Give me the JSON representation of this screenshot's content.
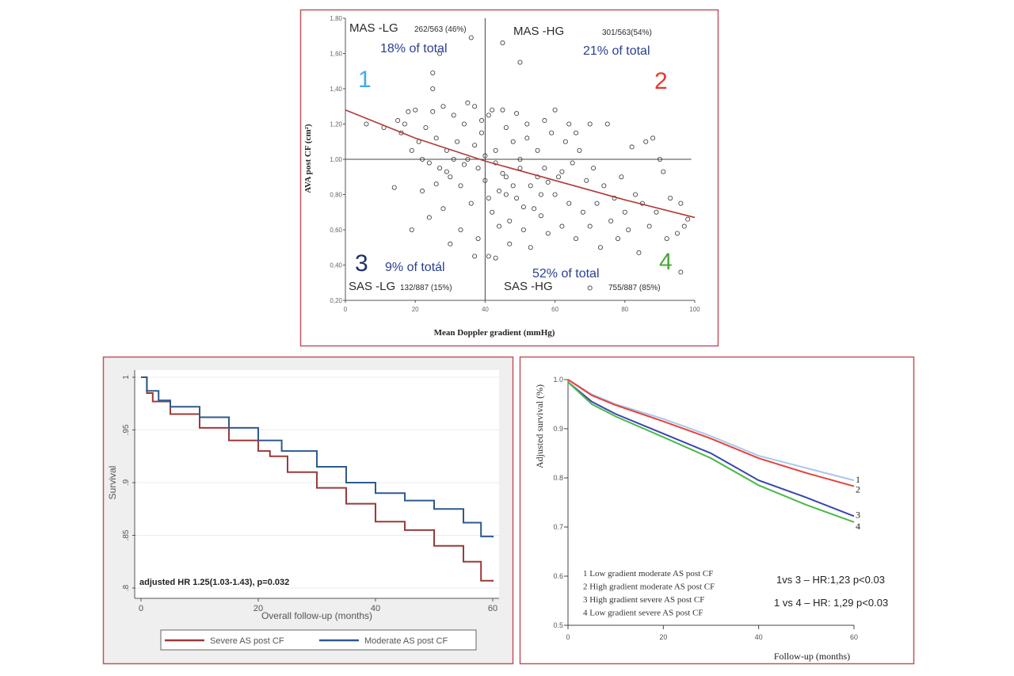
{
  "chart_data": [
    {
      "type": "scatter",
      "xlabel": "Mean Doppler gradient (mmHg)",
      "ylabel": "AVA post CF (cm²)",
      "xlim": [
        0,
        100
      ],
      "ylim": [
        0.2,
        1.8
      ],
      "xticks": [
        "0",
        "20",
        "40",
        "60",
        "80",
        "100"
      ],
      "yticks": [
        "0,20",
        "0,40",
        "0,60",
        "0,80",
        "1,00",
        "1,20",
        "1,40",
        "1,60",
        "1,80"
      ],
      "reference_lines": {
        "x": 40,
        "y": 1.0
      },
      "fit_line": {
        "x": [
          0,
          20,
          40,
          60,
          80,
          100
        ],
        "y": [
          1.28,
          1.12,
          0.99,
          0.88,
          0.77,
          0.67
        ],
        "color": "#b03a3a"
      },
      "quadrants": [
        {
          "number": "1",
          "number_color": "#3fa9f5",
          "label": "MAS -LG",
          "count": "262/563 (46%)",
          "share": "18% of total"
        },
        {
          "number": "2",
          "number_color": "#e8392b",
          "label": "MAS -HG",
          "count": "301/563(54%)",
          "share": "21% of total"
        },
        {
          "number": "3",
          "number_color": "#1f2f6e",
          "label": "SAS -LG",
          "count": "132/887 (15%)",
          "share": "9% of totál"
        },
        {
          "number": "4",
          "number_color": "#4aa83a",
          "label": "SAS -HG",
          "count": "755/887 (85%)",
          "share": "52% of total"
        }
      ],
      "points": [
        [
          6,
          1.2
        ],
        [
          11,
          1.18
        ],
        [
          14,
          0.84
        ],
        [
          19,
          0.6
        ],
        [
          27,
          1.6
        ],
        [
          25,
          1.49
        ],
        [
          25,
          1.4
        ],
        [
          36,
          1.69
        ],
        [
          45,
          1.66
        ],
        [
          50,
          1.55
        ],
        [
          70,
          0.27
        ],
        [
          96,
          0.36
        ],
        [
          41,
          0.45
        ],
        [
          43,
          0.44
        ],
        [
          37,
          0.45
        ],
        [
          15,
          1.22
        ],
        [
          16,
          1.15
        ],
        [
          17,
          1.2
        ],
        [
          18,
          1.27
        ],
        [
          19,
          1.05
        ],
        [
          20,
          1.28
        ],
        [
          21,
          1.1
        ],
        [
          22,
          1.0
        ],
        [
          23,
          1.18
        ],
        [
          24,
          0.98
        ],
        [
          25,
          1.27
        ],
        [
          26,
          1.12
        ],
        [
          27,
          0.95
        ],
        [
          28,
          1.3
        ],
        [
          29,
          1.05
        ],
        [
          30,
          0.9
        ],
        [
          31,
          1.25
        ],
        [
          32,
          1.1
        ],
        [
          33,
          0.85
        ],
        [
          34,
          1.2
        ],
        [
          35,
          1.0
        ],
        [
          36,
          0.75
        ],
        [
          37,
          1.3
        ],
        [
          38,
          0.95
        ],
        [
          39,
          1.15
        ],
        [
          40,
          0.88
        ],
        [
          41,
          1.25
        ],
        [
          42,
          0.7
        ],
        [
          43,
          1.05
        ],
        [
          44,
          0.82
        ],
        [
          45,
          1.28
        ],
        [
          46,
          0.9
        ],
        [
          47,
          0.65
        ],
        [
          48,
          1.1
        ],
        [
          49,
          0.78
        ],
        [
          50,
          1.0
        ],
        [
          51,
          0.6
        ],
        [
          52,
          1.2
        ],
        [
          53,
          0.85
        ],
        [
          54,
          0.72
        ],
        [
          55,
          1.05
        ],
        [
          56,
          0.68
        ],
        [
          57,
          0.95
        ],
        [
          58,
          0.58
        ],
        [
          59,
          1.15
        ],
        [
          60,
          0.8
        ],
        [
          61,
          0.9
        ],
        [
          62,
          0.62
        ],
        [
          63,
          1.1
        ],
        [
          64,
          0.75
        ],
        [
          65,
          0.98
        ],
        [
          66,
          0.55
        ],
        [
          67,
          1.05
        ],
        [
          68,
          0.7
        ],
        [
          69,
          0.88
        ],
        [
          70,
          0.62
        ],
        [
          71,
          0.95
        ],
        [
          72,
          0.75
        ],
        [
          73,
          0.5
        ],
        [
          74,
          0.85
        ],
        [
          75,
          1.2
        ],
        [
          76,
          0.65
        ],
        [
          77,
          0.78
        ],
        [
          78,
          0.55
        ],
        [
          79,
          0.9
        ],
        [
          80,
          0.7
        ],
        [
          81,
          0.6
        ],
        [
          82,
          1.07
        ],
        [
          83,
          0.8
        ],
        [
          84,
          0.47
        ],
        [
          85,
          0.75
        ],
        [
          86,
          1.1
        ],
        [
          87,
          0.62
        ],
        [
          88,
          1.12
        ],
        [
          89,
          0.7
        ],
        [
          90,
          1.0
        ],
        [
          91,
          0.93
        ],
        [
          92,
          0.55
        ],
        [
          93,
          0.78
        ],
        [
          95,
          0.58
        ],
        [
          96,
          0.75
        ],
        [
          97,
          0.62
        ],
        [
          98,
          0.66
        ],
        [
          30,
          0.52
        ],
        [
          28,
          0.72
        ],
        [
          33,
          0.6
        ],
        [
          38,
          0.55
        ],
        [
          44,
          0.62
        ],
        [
          47,
          0.52
        ],
        [
          53,
          0.5
        ],
        [
          22,
          0.82
        ],
        [
          24,
          0.67
        ],
        [
          26,
          0.86
        ],
        [
          35,
          1.32
        ],
        [
          39,
          1.22
        ],
        [
          42,
          1.28
        ],
        [
          46,
          1.18
        ],
        [
          49,
          1.26
        ],
        [
          52,
          1.12
        ],
        [
          57,
          1.22
        ],
        [
          60,
          1.28
        ],
        [
          64,
          1.2
        ],
        [
          66,
          1.15
        ],
        [
          70,
          1.2
        ],
        [
          43,
          0.98
        ],
        [
          45,
          0.92
        ],
        [
          48,
          0.85
        ],
        [
          50,
          0.95
        ],
        [
          55,
          0.9
        ],
        [
          58,
          0.87
        ],
        [
          62,
          0.93
        ],
        [
          40,
          1.02
        ],
        [
          37,
          1.08
        ],
        [
          34,
          0.97
        ],
        [
          31,
          1.0
        ],
        [
          29,
          0.93
        ],
        [
          41,
          0.78
        ],
        [
          46,
          0.8
        ],
        [
          51,
          0.73
        ],
        [
          56,
          0.8
        ]
      ]
    },
    {
      "type": "line",
      "xlabel": "Overall follow-up (months)",
      "ylabel": "Survival",
      "xlim": [
        0,
        60
      ],
      "ylim": [
        0.8,
        1.0
      ],
      "xticks": [
        "0",
        "20",
        "40",
        "60"
      ],
      "yticks": [
        ".8",
        ".85",
        ".9",
        ".95",
        "1"
      ],
      "grid": true,
      "legend_position": "bottom",
      "annotation": "adjusted HR 1.25(1.03-1.43), p=0.032",
      "series": [
        {
          "name": "Severe AS post CF",
          "color": "#9b3a3a",
          "x": [
            0,
            1,
            2,
            5,
            10,
            15,
            20,
            22,
            25,
            30,
            35,
            40,
            45,
            50,
            55,
            58,
            60
          ],
          "y": [
            1,
            0.985,
            0.977,
            0.965,
            0.952,
            0.94,
            0.93,
            0.925,
            0.91,
            0.895,
            0.88,
            0.863,
            0.855,
            0.84,
            0.825,
            0.807,
            0.806
          ]
        },
        {
          "name": "Moderate AS post CF",
          "color": "#2e5a8c",
          "x": [
            0,
            1,
            3,
            5,
            10,
            15,
            20,
            24,
            30,
            35,
            40,
            45,
            50,
            55,
            58,
            60
          ],
          "y": [
            1,
            0.987,
            0.978,
            0.972,
            0.962,
            0.952,
            0.94,
            0.93,
            0.915,
            0.9,
            0.89,
            0.883,
            0.875,
            0.862,
            0.849,
            0.848
          ]
        }
      ]
    },
    {
      "type": "line",
      "xlabel": "Follow-up (months)",
      "ylabel": "Adjusted survival (%)",
      "xlim": [
        0,
        60
      ],
      "ylim": [
        0.5,
        1.0
      ],
      "xticks": [
        "0",
        "20",
        "40",
        "60"
      ],
      "yticks": [
        "0.5",
        "0.6",
        "0.7",
        "0.8",
        "0.9",
        "1.0"
      ],
      "legend_position": "bottom-left",
      "annotations": [
        "1vs 3 – HR:1,23  p<0.03",
        "1 vs 4 – HR: 1,29  p<0.03"
      ],
      "series": [
        {
          "name": "1 Low gradient moderate AS post CF",
          "label": "1",
          "color": "#a8c8ec",
          "x": [
            0,
            5,
            10,
            20,
            30,
            40,
            50,
            60
          ],
          "y": [
            1,
            0.97,
            0.95,
            0.92,
            0.885,
            0.845,
            0.82,
            0.795
          ]
        },
        {
          "name": "2 High gradient moderate AS post CF",
          "label": "2",
          "color": "#e8413a",
          "x": [
            0,
            5,
            10,
            20,
            30,
            40,
            50,
            60
          ],
          "y": [
            1,
            0.968,
            0.948,
            0.915,
            0.88,
            0.84,
            0.81,
            0.783
          ]
        },
        {
          "name": "3 High gradient severe AS post CF",
          "label": "3",
          "color": "#3a45b0",
          "x": [
            0,
            5,
            10,
            20,
            30,
            40,
            50,
            60
          ],
          "y": [
            0.995,
            0.955,
            0.93,
            0.89,
            0.85,
            0.795,
            0.76,
            0.722
          ]
        },
        {
          "name": "4 Low gradient severe AS post CF",
          "label": "4",
          "color": "#4cb84a",
          "x": [
            0,
            5,
            10,
            20,
            30,
            40,
            50,
            60
          ],
          "y": [
            0.995,
            0.95,
            0.925,
            0.883,
            0.84,
            0.785,
            0.745,
            0.71
          ]
        }
      ]
    }
  ]
}
